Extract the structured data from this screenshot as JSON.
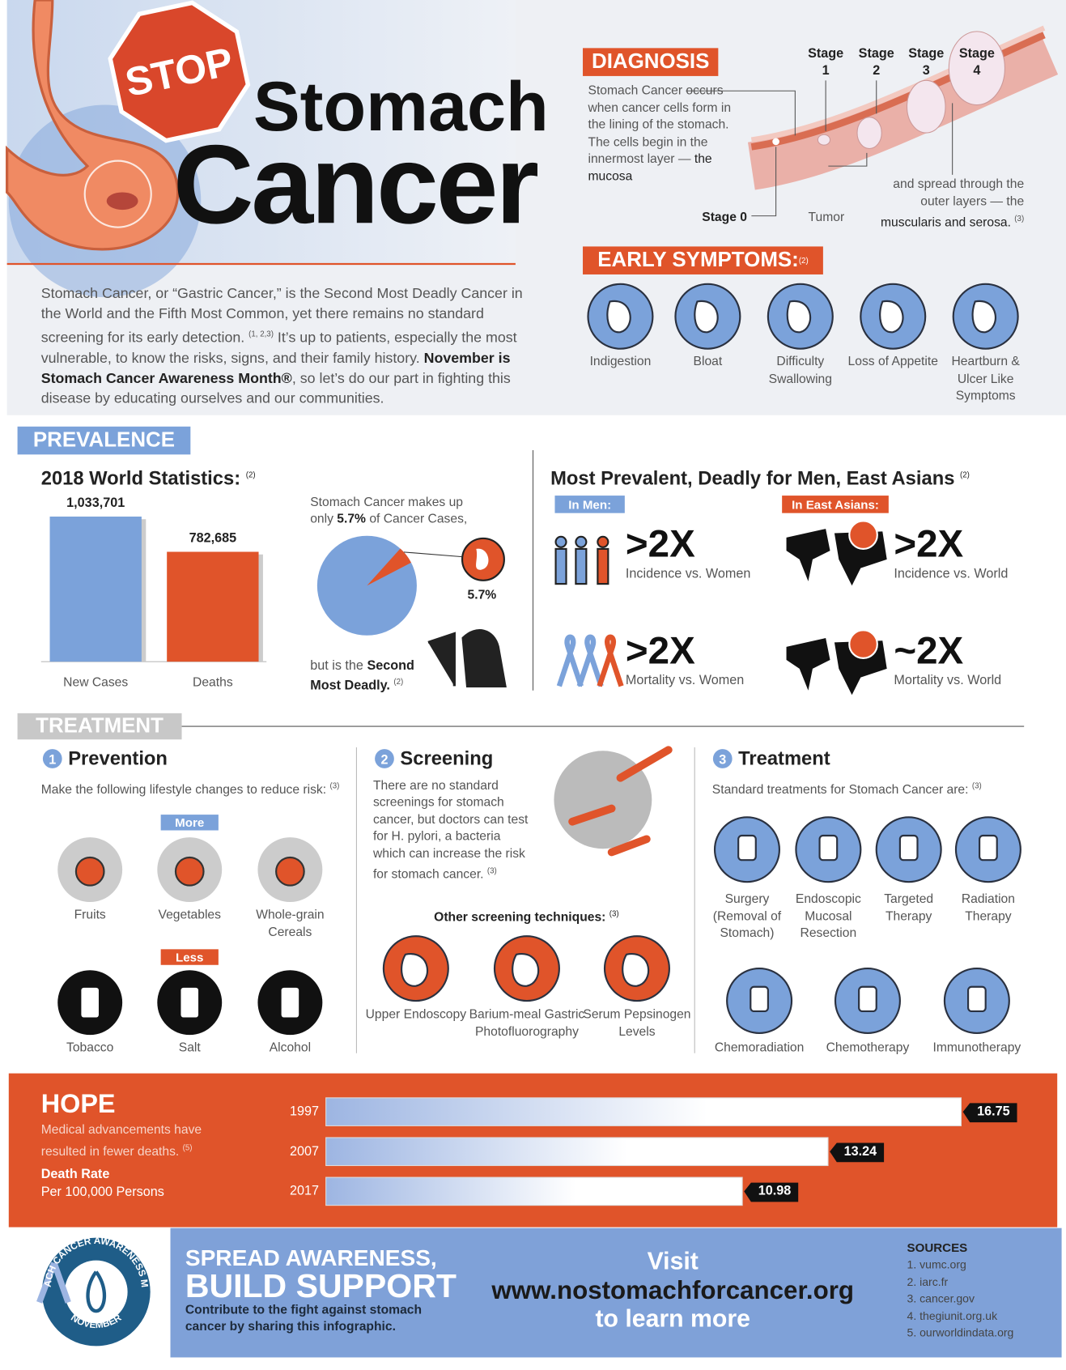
{
  "header": {
    "badge": "STOP",
    "title_line1": "Stomach",
    "title_line2": "Cancer"
  },
  "intro": {
    "text1": "Stomach Cancer, or “Gastric Cancer,” is the Second Most Deadly Cancer in the World and the Fifth Most Common, yet there remains no standard screening for its early detection.",
    "note1": "(1, 2,3)",
    "text2": "It’s up to patients, especially the most vulnerable, to know the risks, signs, and their family history.",
    "bold": "November is Stomach Cancer Awareness Month®",
    "text3": ", so let’s do our part in fighting this disease by educating ourselves and our communities."
  },
  "diagnosis": {
    "heading": "DIAGNOSIS",
    "text": "Stomach Cancer occurs when cancer cells form in the lining of the stomach. The cells begin in the innermost layer —",
    "text_dark": "the mucosa",
    "stages": [
      "Stage 1",
      "Stage 2",
      "Stage 3",
      "Stage 4"
    ],
    "stage0": "Stage 0",
    "tumor": "Tumor",
    "spread": "and spread through the outer layers — the",
    "spread_dark": "muscularis and serosa.",
    "note": "(3)"
  },
  "symptoms": {
    "heading": "EARLY SYMPTOMS:",
    "note": "(2)",
    "items": [
      "Indigestion",
      "Bloat",
      "Difficulty Swallowing",
      "Loss of Appetite",
      "Heartburn & Ulcer Like Symptoms"
    ]
  },
  "prevalence": {
    "heading": "PREVALENCE"
  },
  "chart_data": [
    {
      "type": "bar",
      "title": "2018 World Statistics:",
      "title_note": "(2)",
      "categories": [
        "New Cases",
        "Deaths"
      ],
      "values": [
        1033701,
        782685
      ],
      "value_labels": [
        "1,033,701",
        "782,685"
      ],
      "colors": [
        "#7ba2da",
        "#e0542a"
      ]
    },
    {
      "type": "pie",
      "values": [
        5.7
      ],
      "value_labels": [
        "5.7%"
      ],
      "annotations": [
        "Stomach Cancer makes up only",
        "of Cancer Cases,",
        "but is the",
        "Second Most Deadly.",
        "(2)"
      ],
      "colors": [
        "#e0542a",
        "#7ba2da"
      ]
    },
    {
      "type": "bar",
      "orientation": "horizontal",
      "categories": [
        "1997",
        "2007",
        "2017"
      ],
      "values": [
        16.75,
        13.24,
        10.98
      ],
      "color": "#9db5e2"
    }
  ],
  "demographics": {
    "title": "Most Prevalent, Deadly for Men, East Asians",
    "note": "(2)",
    "men_tag": "In Men:",
    "asia_tag": "In East Asians:",
    "stats": [
      {
        "value": ">2X",
        "label": "Incidence vs. Women"
      },
      {
        "value": ">2X",
        "label": "Mortality vs. Women"
      },
      {
        "value": ">2X",
        "label": "Incidence vs. World"
      },
      {
        "value": "~2X",
        "label": "Mortality vs. World"
      }
    ]
  },
  "treatment": {
    "heading": "TREATMENT",
    "prevention": {
      "number": "1",
      "title": "Prevention",
      "text": "Make the following lifestyle changes to reduce risk:",
      "note": "(3)",
      "more": "More",
      "less": "Less",
      "more_items": [
        "Fruits",
        "Vegetables",
        "Whole-grain Cereals"
      ],
      "less_items": [
        "Tobacco",
        "Salt",
        "Alcohol"
      ]
    },
    "screening": {
      "number": "2",
      "title": "Screening",
      "text": "There are no standard screenings for stomach cancer, but doctors can test for H. pylori, a bacteria which can increase the risk for stomach cancer.",
      "note": "(3)",
      "other": "Other screening techniques:",
      "other_note": "(3)",
      "items": [
        "Upper Endoscopy",
        "Barium-meal Gastric Photofluorography",
        "Serum Pepsinogen Levels"
      ]
    },
    "therapy": {
      "number": "3",
      "title": "Treatment",
      "text": "Standard treatments for Stomach Cancer are:",
      "note": "(3)",
      "items": [
        "Surgery (Removal of Stomach)",
        "Endoscopic Mucosal Resection",
        "Targeted Therapy",
        "Radiation Therapy",
        "Chemoradiation",
        "Chemotherapy",
        "Immunotherapy"
      ]
    }
  },
  "hope": {
    "title": "HOPE",
    "text": "Medical advancements have resulted in fewer deaths.",
    "note": "(5)",
    "metric": "Death Rate",
    "unit": "Per 100,000 Persons"
  },
  "footer": {
    "line1": "SPREAD AWARENESS,",
    "line2": "BUILD SUPPORT",
    "text": "Contribute to the fight against stomach cancer by sharing this infographic.",
    "visit": "Visit",
    "url": "www.nostomachforcancer.org",
    "learn": "to learn more",
    "sources_title": "SOURCES",
    "sources": [
      "1. vumc.org",
      "2. iarc.fr",
      "3. cancer.gov",
      "4. thegiunit.org.uk",
      "5. ourworldindata.org"
    ],
    "logo_top": "STOMACH CANCER AWARENESS MONTH",
    "logo_bottom": "NOVEMBER"
  }
}
